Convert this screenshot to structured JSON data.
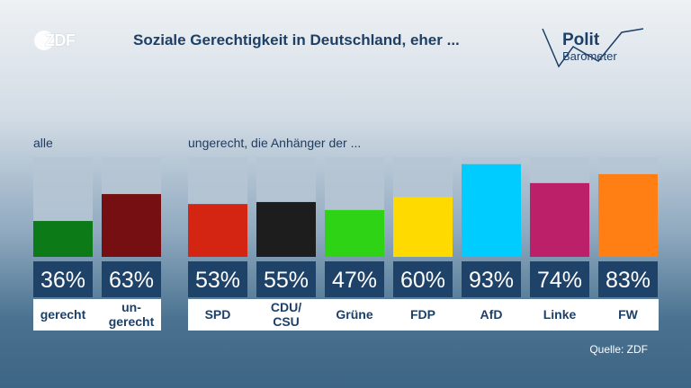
{
  "header": {
    "logo_text": "ZDF",
    "title": "Soziale Gerechtigkeit in Deutschland, eher ...",
    "brand_line1": "Polit",
    "brand_line2": "Barometer"
  },
  "sections": {
    "all_label": "alle",
    "supporters_label": "ungerecht, die Anhänger der ..."
  },
  "source": "Quelle: ZDF",
  "colors": {
    "track": "#b6c6d4",
    "value_box": "#1f4268",
    "value_text": "#ffffff",
    "label_strip": "#ffffff",
    "label_text": "#1e3f66"
  },
  "chart_data": {
    "type": "bar",
    "title": "Soziale Gerechtigkeit in Deutschland, eher ...",
    "ylim": [
      0,
      100
    ],
    "unit": "%",
    "categories": [
      "gerecht",
      "un-\ngerecht",
      "SPD",
      "CDU/\nCSU",
      "Grüne",
      "FDP",
      "AfD",
      "Linke",
      "FW"
    ],
    "values": [
      36,
      63,
      53,
      55,
      47,
      60,
      93,
      74,
      83
    ],
    "value_labels": [
      "36%",
      "63%",
      "53%",
      "55%",
      "47%",
      "60%",
      "93%",
      "74%",
      "83%"
    ],
    "bar_colors": [
      "#0b7a17",
      "#750f12",
      "#d42412",
      "#1d1d1d",
      "#2fd316",
      "#ffda00",
      "#00ccff",
      "#bb2069",
      "#ff7f15"
    ],
    "groups": [
      {
        "label": "alle",
        "categories": [
          "gerecht",
          "un-\ngerecht"
        ]
      },
      {
        "label": "ungerecht, die Anhänger der ...",
        "categories": [
          "SPD",
          "CDU/\nCSU",
          "Grüne",
          "FDP",
          "AfD",
          "Linke",
          "FW"
        ]
      }
    ],
    "grid": false,
    "legend": "none"
  }
}
